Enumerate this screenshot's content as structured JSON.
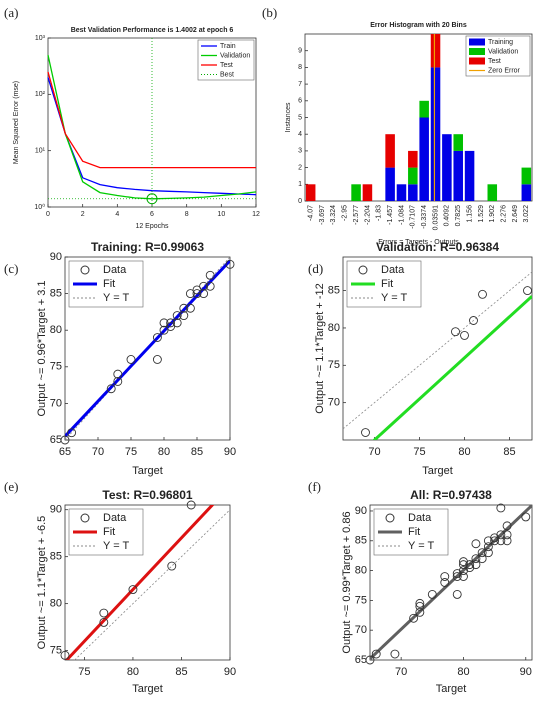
{
  "chart_data": [
    {
      "type": "line",
      "panel": "(a)",
      "title": "Best Validation Performance is 1.4002 at epoch 6",
      "xlabel": "12 Epochs",
      "ylabel": "Mean Squared Error (mse)",
      "x": [
        0,
        1,
        2,
        3,
        4,
        5,
        6,
        7,
        8,
        9,
        10,
        11,
        12
      ],
      "xlim": [
        0,
        12
      ],
      "xticks": [
        0,
        2,
        4,
        6,
        8,
        10,
        12
      ],
      "log_y": true,
      "ylim": [
        1,
        1000
      ],
      "yticks": [
        {
          "value": 1,
          "label": "10⁰"
        },
        {
          "value": 10,
          "label": "10¹"
        },
        {
          "value": 100,
          "label": "10²"
        },
        {
          "value": 1000,
          "label": "10³"
        }
      ],
      "series": [
        {
          "name": "Train",
          "color": "#0000ff",
          "values": [
            200,
            20,
            3.3,
            2.5,
            2.2,
            2.05,
            1.95,
            1.9,
            1.85,
            1.8,
            1.75,
            1.7,
            1.65
          ]
        },
        {
          "name": "Validation",
          "color": "#00cc00",
          "values": [
            500,
            20,
            2.8,
            1.8,
            1.6,
            1.45,
            1.4002,
            1.42,
            1.45,
            1.5,
            1.6,
            1.7,
            1.85
          ]
        },
        {
          "name": "Test",
          "color": "#ff0000",
          "values": [
            250,
            20,
            6.5,
            5,
            5,
            5,
            5,
            5,
            5,
            5,
            5,
            5,
            5
          ]
        }
      ],
      "best": {
        "name": "Best",
        "color": "#00aa00",
        "x": 6,
        "y": 1.4002
      },
      "legend": "upper right"
    },
    {
      "type": "bar",
      "stacked": true,
      "panel": "(b)",
      "title": "Error Histogram with 20 Bins",
      "xlabel": "Errors = Targets - Outputs",
      "ylabel": "Instances",
      "categories": [
        "-4.07",
        "-3.697",
        "-3.324",
        "-2.95",
        "-2.577",
        "-2.204",
        "-1.83",
        "-1.457",
        "-1.084",
        "-0.7107",
        "-0.3374",
        "0.03591",
        "0.4092",
        "0.7825",
        "1.156",
        "1.529",
        "1.902",
        "2.276",
        "2.649",
        "3.022"
      ],
      "ylim": [
        0,
        10
      ],
      "yticks": [
        0,
        1,
        2,
        3,
        4,
        5,
        6,
        7,
        8,
        9
      ],
      "series": [
        {
          "name": "Training",
          "color": "#0000e6",
          "values": [
            0,
            0,
            0,
            0,
            0,
            0,
            0,
            2,
            1,
            1,
            5,
            8,
            4,
            3,
            3,
            0,
            0,
            0,
            0,
            1
          ]
        },
        {
          "name": "Validation",
          "color": "#00c000",
          "values": [
            0,
            0,
            0,
            0,
            1,
            0,
            0,
            0,
            0,
            1,
            1,
            0,
            0,
            1,
            0,
            0,
            1,
            0,
            0,
            1
          ]
        },
        {
          "name": "Test",
          "color": "#e60000",
          "values": [
            1,
            0,
            0,
            0,
            0,
            1,
            0,
            2,
            0,
            1,
            0,
            2,
            0,
            0,
            0,
            0,
            0,
            0,
            0,
            0
          ]
        }
      ],
      "zero_error": {
        "name": "Zero Error",
        "color": "#f0a000",
        "value": 0
      },
      "legend": "upper right"
    },
    {
      "type": "scatter",
      "panel": "(c)",
      "title": "Training: R=0.99063",
      "xlabel": "Target",
      "ylabel": "Output ~= 0.96*Target + 3.1",
      "xlim": [
        65,
        90
      ],
      "xticks": [
        65,
        70,
        75,
        80,
        85,
        90
      ],
      "ylim": [
        65,
        90
      ],
      "yticks": [
        65,
        70,
        75,
        80,
        85,
        90
      ],
      "series": [
        {
          "name": "Data",
          "x": [
            65,
            66,
            72,
            73,
            73,
            75,
            79,
            79,
            80,
            80,
            81,
            81,
            82,
            82,
            83,
            83,
            84,
            84,
            85,
            85,
            86,
            86,
            87,
            87,
            90
          ],
          "values": [
            65,
            66,
            72,
            73,
            74,
            76,
            76,
            79,
            80,
            81,
            81,
            80.5,
            81,
            82,
            82,
            83,
            83,
            85,
            85,
            85.5,
            85,
            86,
            86,
            87.5,
            89
          ]
        }
      ],
      "fit": {
        "name": "Fit",
        "color": "#0000ee",
        "slope": 0.96,
        "intercept": 3.1
      },
      "identity": {
        "name": "Y = T"
      }
    },
    {
      "type": "scatter",
      "panel": "(d)",
      "title": "Validation: R=0.96384",
      "xlabel": "Target",
      "ylabel": "Output ~= 1.1*Target + -12",
      "xlim": [
        66.5,
        87.5
      ],
      "xticks": [
        70,
        75,
        80,
        85
      ],
      "ylim": [
        65,
        89.5
      ],
      "yticks": [
        70,
        75,
        80,
        85
      ],
      "series": [
        {
          "name": "Data",
          "x": [
            69,
            79,
            80,
            81,
            82,
            87
          ],
          "values": [
            66,
            79.5,
            79,
            81,
            84.5,
            85
          ]
        }
      ],
      "fit": {
        "name": "Fit",
        "color": "#22dd22",
        "slope": 1.1,
        "intercept": -12
      },
      "identity": {
        "name": "Y = T"
      }
    },
    {
      "type": "scatter",
      "panel": "(e)",
      "title": "Test: R=0.96801",
      "xlabel": "Target",
      "ylabel": "Output ~= 1.1*Target + -6.5",
      "xlim": [
        73,
        90
      ],
      "xticks": [
        75,
        80,
        85,
        90
      ],
      "ylim": [
        74,
        90.5
      ],
      "yticks": [
        75,
        80,
        85,
        90
      ],
      "series": [
        {
          "name": "Data",
          "x": [
            73,
            77,
            77,
            80,
            84,
            86
          ],
          "values": [
            74.5,
            79,
            78,
            81.5,
            84,
            90.5
          ]
        }
      ],
      "fit": {
        "name": "Fit",
        "color": "#dd1111",
        "slope": 1.1,
        "intercept": -6.5
      },
      "identity": {
        "name": "Y = T"
      }
    },
    {
      "type": "scatter",
      "panel": "(f)",
      "title": "All: R=0.97438",
      "xlabel": "Target",
      "ylabel": "Output ~= 0.99*Target + 0.86",
      "xlim": [
        65,
        91
      ],
      "xticks": [
        70,
        80,
        90
      ],
      "ylim": [
        65,
        91
      ],
      "yticks": [
        65,
        70,
        75,
        80,
        85,
        90
      ],
      "series": [
        {
          "name": "Data",
          "x": [
            65,
            66,
            69,
            72,
            73,
            73,
            73,
            75,
            77,
            77,
            79,
            79,
            79,
            80,
            80,
            80,
            80,
            81,
            81,
            82,
            82,
            82,
            83,
            83,
            84,
            84,
            84,
            85,
            85,
            86,
            86,
            86,
            87,
            87,
            87,
            90
          ],
          "values": [
            65,
            66,
            66,
            72,
            73,
            74,
            74.5,
            76,
            79,
            78,
            76,
            79,
            79.5,
            80,
            81,
            79,
            81.5,
            81,
            80.5,
            81,
            82,
            84.5,
            82,
            83,
            83,
            85,
            84,
            85,
            85.5,
            85,
            86,
            90.5,
            86,
            87.5,
            85,
            89
          ]
        }
      ],
      "fit": {
        "name": "Fit",
        "color": "#606060",
        "slope": 0.99,
        "intercept": 0.86
      },
      "identity": {
        "name": "Y = T"
      }
    }
  ]
}
